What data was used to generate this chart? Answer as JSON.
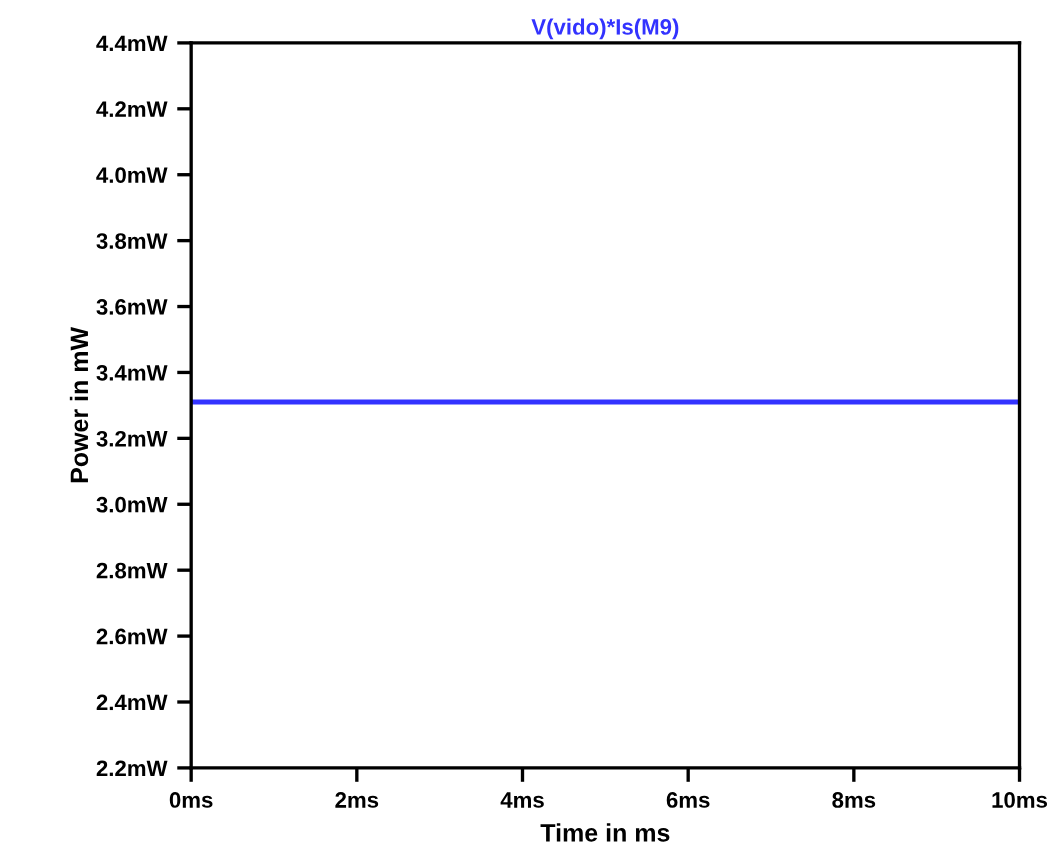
{
  "chart_data": {
    "type": "line",
    "title": "V(vido)*Is(M9)",
    "xlabel": "Time in ms",
    "ylabel": "Power in mW",
    "x": [
      0,
      10
    ],
    "series": [
      {
        "color": "#3333ff",
        "values": [
          3.31,
          3.31
        ]
      }
    ],
    "xlim": [
      0,
      10
    ],
    "ylim": [
      2.2,
      4.4
    ],
    "xticks": [
      {
        "value": 0,
        "label": "0ms"
      },
      {
        "value": 2,
        "label": "2ms"
      },
      {
        "value": 4,
        "label": "4ms"
      },
      {
        "value": 6,
        "label": "6ms"
      },
      {
        "value": 8,
        "label": "8ms"
      },
      {
        "value": 10,
        "label": "10ms"
      }
    ],
    "yticks": [
      {
        "value": 2.2,
        "label": "2.2mW"
      },
      {
        "value": 2.4,
        "label": "2.4mW"
      },
      {
        "value": 2.6,
        "label": "2.6mW"
      },
      {
        "value": 2.8,
        "label": "2.8mW"
      },
      {
        "value": 3.0,
        "label": "3.0mW"
      },
      {
        "value": 3.2,
        "label": "3.2mW"
      },
      {
        "value": 3.4,
        "label": "3.4mW"
      },
      {
        "value": 3.6,
        "label": "3.6mW"
      },
      {
        "value": 3.8,
        "label": "3.8mW"
      },
      {
        "value": 4.0,
        "label": "4.0mW"
      },
      {
        "value": 4.2,
        "label": "4.2mW"
      },
      {
        "value": 4.4,
        "label": "4.4mW"
      }
    ],
    "grid": false,
    "legend": false,
    "marker": "none",
    "line_style": "solid"
  }
}
